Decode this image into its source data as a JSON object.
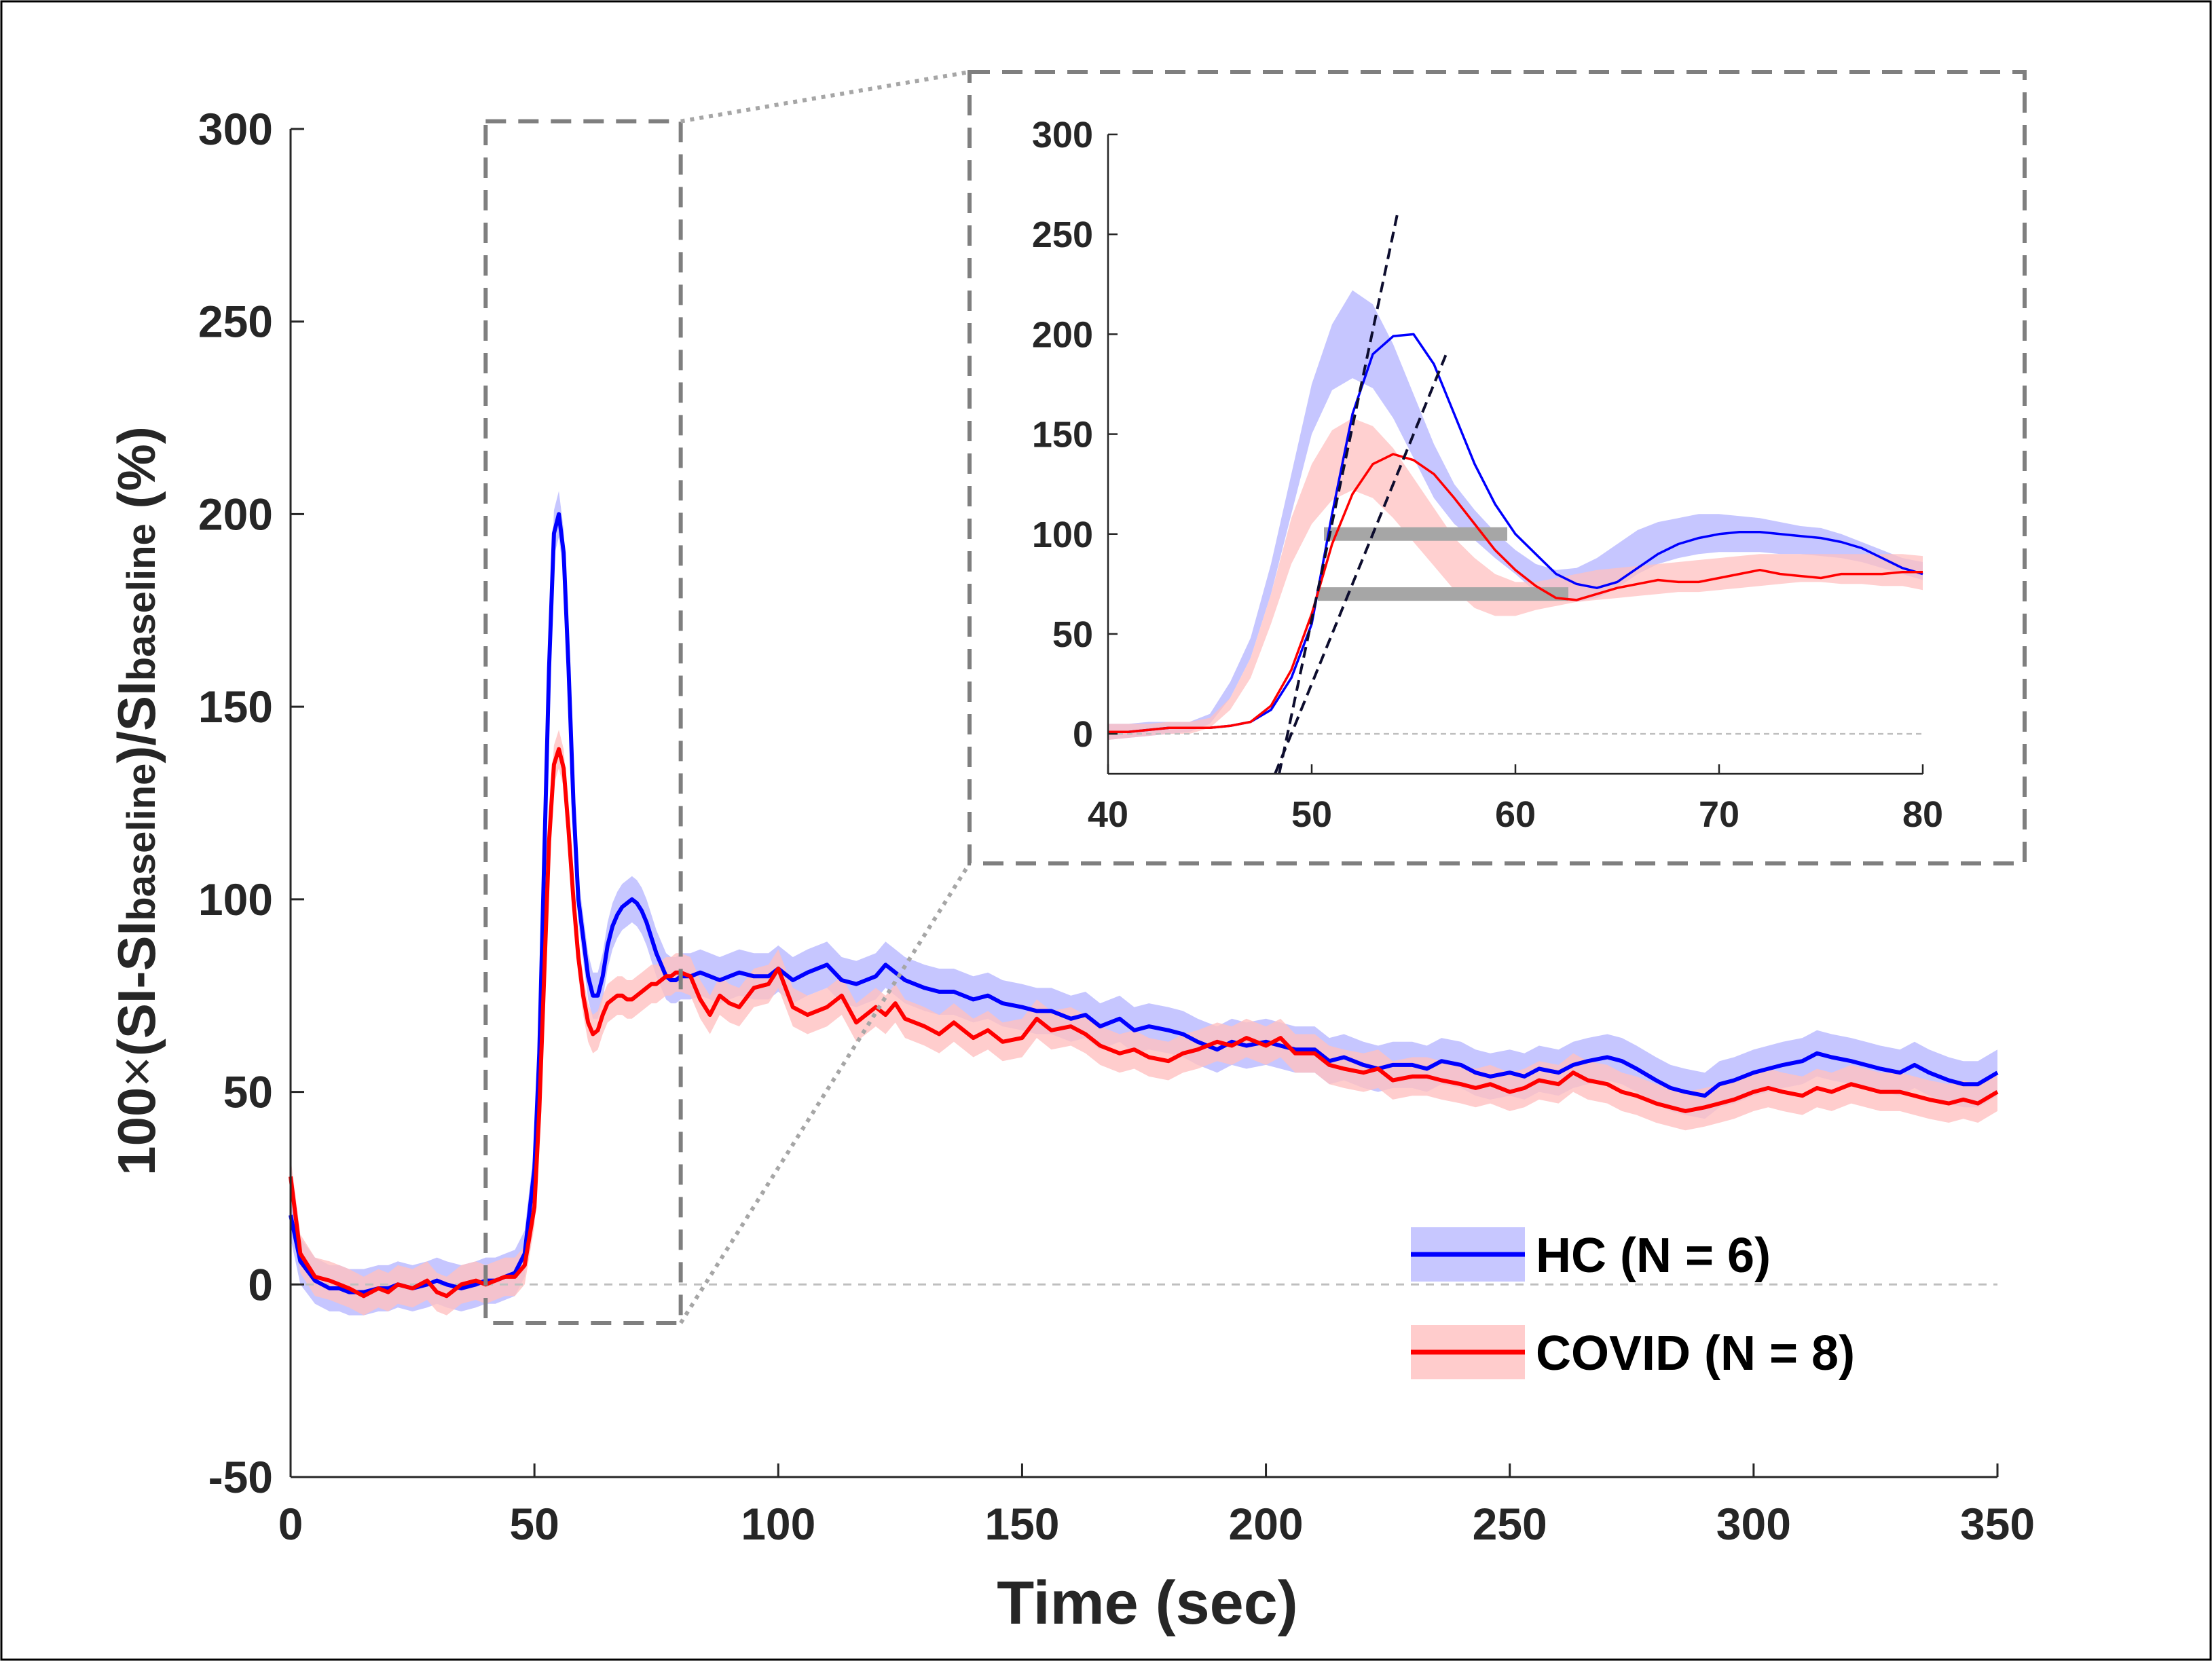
{
  "chart_data": [
    {
      "id": "main",
      "type": "line",
      "title": "",
      "xlabel": "Time (sec)",
      "ylabel_parts": [
        "100",
        "×",
        "(SI-SI",
        "baseline",
        ")/SI",
        "baseline",
        " (%)"
      ],
      "xlim": [
        0,
        350
      ],
      "ylim": [
        -50,
        300
      ],
      "xticks": [
        "0",
        "50",
        "100",
        "150",
        "200",
        "250",
        "300",
        "350"
      ],
      "xtick_values": [
        0,
        50,
        100,
        150,
        200,
        250,
        300,
        350
      ],
      "yticks": [
        "-50",
        "0",
        "50",
        "100",
        "150",
        "200",
        "250",
        "300"
      ],
      "ytick_values": [
        -50,
        0,
        50,
        100,
        150,
        200,
        250,
        300
      ],
      "zero_reference_line": true,
      "zoom_box": {
        "x": [
          40,
          80
        ],
        "y": [
          -10,
          302
        ]
      },
      "series": [
        {
          "name": "HC (N = 6)",
          "color": "#0000ff",
          "band_color": "#b3b3ff",
          "band_halfwidth": 6,
          "x": [
            0,
            2,
            5,
            8,
            10,
            12,
            15,
            18,
            20,
            22,
            25,
            28,
            30,
            32,
            35,
            38,
            40,
            42,
            44,
            46,
            48,
            50,
            51,
            52,
            53,
            54,
            55,
            56,
            57,
            58,
            59,
            60,
            61,
            62,
            63,
            64,
            65,
            66,
            67,
            68,
            69,
            70,
            71,
            72,
            73,
            74,
            75,
            76,
            77,
            78,
            79,
            80,
            82,
            84,
            86,
            88,
            90,
            92,
            95,
            98,
            100,
            103,
            106,
            110,
            113,
            116,
            120,
            122,
            124,
            126,
            130,
            133,
            136,
            140,
            143,
            146,
            150,
            153,
            156,
            160,
            163,
            166,
            170,
            173,
            176,
            180,
            183,
            186,
            190,
            193,
            196,
            200,
            203,
            206,
            210,
            213,
            216,
            220,
            223,
            226,
            230,
            233,
            236,
            240,
            243,
            246,
            250,
            253,
            256,
            260,
            263,
            266,
            270,
            273,
            276,
            280,
            283,
            286,
            290,
            293,
            296,
            300,
            303,
            306,
            310,
            313,
            316,
            320,
            323,
            326,
            330,
            333,
            336,
            340,
            343,
            346,
            350
          ],
          "y": [
            18,
            6,
            1,
            -1,
            -1,
            -2,
            -2,
            -1,
            -1,
            0,
            -1,
            0,
            1,
            0,
            -1,
            0,
            1,
            1,
            2,
            3,
            8,
            30,
            60,
            110,
            160,
            195,
            200,
            190,
            160,
            125,
            100,
            90,
            80,
            75,
            75,
            80,
            88,
            93,
            96,
            98,
            99,
            100,
            99,
            97,
            94,
            90,
            86,
            83,
            80,
            79,
            79,
            80,
            80,
            81,
            80,
            79,
            80,
            81,
            80,
            80,
            82,
            79,
            81,
            83,
            79,
            78,
            80,
            83,
            81,
            79,
            77,
            76,
            76,
            74,
            75,
            73,
            72,
            71,
            71,
            69,
            70,
            67,
            69,
            66,
            67,
            66,
            65,
            63,
            61,
            63,
            62,
            63,
            62,
            61,
            61,
            58,
            59,
            57,
            56,
            57,
            57,
            56,
            58,
            57,
            55,
            54,
            55,
            54,
            56,
            55,
            57,
            58,
            59,
            58,
            56,
            53,
            51,
            50,
            49,
            52,
            53,
            55,
            56,
            57,
            58,
            60,
            59,
            58,
            57,
            56,
            55,
            57,
            55,
            53,
            52,
            52,
            55
          ]
        },
        {
          "name": "COVID (N = 8)",
          "color": "#ff0000",
          "band_color": "#ffc0c0",
          "band_halfwidth": 5,
          "x": [
            0,
            2,
            5,
            8,
            10,
            12,
            15,
            18,
            20,
            22,
            25,
            28,
            30,
            32,
            35,
            38,
            40,
            42,
            44,
            46,
            48,
            50,
            51,
            52,
            53,
            54,
            55,
            56,
            57,
            58,
            59,
            60,
            61,
            62,
            63,
            64,
            65,
            66,
            67,
            68,
            69,
            70,
            71,
            72,
            73,
            74,
            75,
            76,
            77,
            78,
            79,
            80,
            82,
            84,
            86,
            88,
            90,
            92,
            95,
            98,
            100,
            103,
            106,
            110,
            113,
            116,
            120,
            122,
            124,
            126,
            130,
            133,
            136,
            140,
            143,
            146,
            150,
            153,
            156,
            160,
            163,
            166,
            170,
            173,
            176,
            180,
            183,
            186,
            190,
            193,
            196,
            200,
            203,
            206,
            210,
            213,
            216,
            220,
            223,
            226,
            230,
            233,
            236,
            240,
            243,
            246,
            250,
            253,
            256,
            260,
            263,
            266,
            270,
            273,
            276,
            280,
            283,
            286,
            290,
            293,
            296,
            300,
            303,
            306,
            310,
            313,
            316,
            320,
            323,
            326,
            330,
            333,
            336,
            340,
            343,
            346,
            350
          ],
          "y": [
            28,
            8,
            2,
            1,
            0,
            -1,
            -3,
            -1,
            -2,
            0,
            -1,
            1,
            -2,
            -3,
            0,
            1,
            0,
            1,
            2,
            2,
            5,
            20,
            45,
            80,
            115,
            135,
            139,
            134,
            118,
            100,
            85,
            75,
            68,
            65,
            66,
            70,
            73,
            74,
            75,
            75,
            74,
            74,
            75,
            76,
            77,
            78,
            78,
            79,
            80,
            80,
            81,
            81,
            80,
            74,
            70,
            75,
            73,
            72,
            77,
            78,
            82,
            72,
            70,
            72,
            75,
            68,
            72,
            70,
            73,
            69,
            67,
            65,
            68,
            64,
            66,
            63,
            64,
            69,
            66,
            67,
            65,
            62,
            60,
            61,
            59,
            58,
            60,
            61,
            63,
            62,
            64,
            62,
            64,
            60,
            60,
            57,
            56,
            55,
            56,
            53,
            54,
            54,
            53,
            52,
            51,
            52,
            50,
            51,
            53,
            52,
            55,
            53,
            52,
            50,
            49,
            47,
            46,
            45,
            46,
            47,
            48,
            50,
            51,
            50,
            49,
            51,
            50,
            52,
            51,
            50,
            50,
            49,
            48,
            47,
            48,
            47,
            50
          ]
        }
      ],
      "legend": {
        "position": "bottom-right",
        "entries": [
          "HC (N = 6)",
          "COVID (N = 8)"
        ]
      }
    },
    {
      "id": "inset",
      "type": "line",
      "title": "",
      "xlabel": "",
      "ylabel": "",
      "xlim": [
        40,
        80
      ],
      "ylim": [
        -20,
        300
      ],
      "xticks": [
        "40",
        "50",
        "60",
        "70",
        "80"
      ],
      "xtick_values": [
        40,
        50,
        60,
        70,
        80
      ],
      "yticks": [
        "0",
        "50",
        "100",
        "150",
        "200",
        "250",
        "300"
      ],
      "ytick_values": [
        0,
        50,
        100,
        150,
        200,
        250,
        300
      ],
      "series": [
        {
          "name": "HC",
          "color": "#0000ff",
          "band_color": "#b3b3ff",
          "band_lower": [
            -3,
            -2,
            -1,
            0,
            1,
            5,
            18,
            38,
            70,
            110,
            150,
            172,
            178,
            173,
            158,
            138,
            118,
            105,
            97,
            88,
            80,
            71,
            67,
            66,
            68,
            73,
            80,
            85,
            88,
            90,
            91,
            91,
            91,
            90,
            90,
            89,
            88,
            86,
            83,
            80,
            77
          ],
          "band_upper": [
            5,
            5,
            6,
            6,
            6,
            10,
            26,
            48,
            85,
            130,
            175,
            205,
            222,
            215,
            195,
            170,
            145,
            125,
            112,
            101,
            92,
            85,
            82,
            83,
            88,
            95,
            102,
            106,
            108,
            110,
            110,
            109,
            108,
            106,
            104,
            103,
            100,
            96,
            92,
            88,
            86
          ],
          "x": [
            40,
            41,
            42,
            43,
            44,
            45,
            46,
            47,
            48,
            49,
            50,
            51,
            52,
            53,
            54,
            55,
            56,
            57,
            58,
            59,
            60,
            61,
            62,
            63,
            64,
            65,
            66,
            67,
            68,
            69,
            70,
            71,
            72,
            73,
            74,
            75,
            76,
            77,
            78,
            79,
            80
          ],
          "y": [
            1,
            1,
            2,
            3,
            3,
            3,
            4,
            6,
            12,
            28,
            55,
            110,
            160,
            190,
            199,
            200,
            185,
            160,
            135,
            115,
            100,
            90,
            80,
            75,
            73,
            76,
            83,
            90,
            95,
            98,
            100,
            101,
            101,
            100,
            99,
            98,
            96,
            93,
            88,
            83,
            80
          ]
        },
        {
          "name": "COVID",
          "color": "#ff0000",
          "band_color": "#ffc0c0",
          "band_lower": [
            -3,
            -2,
            -1,
            0,
            0,
            3,
            12,
            28,
            55,
            85,
            105,
            117,
            122,
            118,
            108,
            96,
            84,
            72,
            63,
            59,
            59,
            62,
            64,
            66,
            67,
            68,
            69,
            70,
            71,
            71,
            72,
            73,
            74,
            75,
            76,
            76,
            75,
            75,
            74,
            74,
            72
          ],
          "band_upper": [
            5,
            5,
            5,
            6,
            6,
            8,
            18,
            38,
            70,
            108,
            135,
            152,
            158,
            154,
            143,
            128,
            113,
            98,
            88,
            80,
            76,
            76,
            78,
            80,
            82,
            83,
            84,
            85,
            86,
            87,
            88,
            89,
            90,
            90,
            90,
            90,
            90,
            90,
            90,
            90,
            89
          ],
          "x": [
            40,
            41,
            42,
            43,
            44,
            45,
            46,
            47,
            48,
            49,
            50,
            51,
            52,
            53,
            54,
            55,
            56,
            57,
            58,
            59,
            60,
            61,
            62,
            63,
            64,
            65,
            66,
            67,
            68,
            69,
            70,
            71,
            72,
            73,
            74,
            75,
            76,
            77,
            78,
            79,
            80
          ],
          "y": [
            1,
            1,
            2,
            3,
            3,
            3,
            4,
            6,
            14,
            32,
            60,
            95,
            120,
            135,
            140,
            137,
            130,
            118,
            105,
            92,
            82,
            74,
            68,
            67,
            70,
            73,
            75,
            77,
            76,
            76,
            78,
            80,
            82,
            80,
            79,
            78,
            80,
            80,
            80,
            81,
            81
          ]
        }
      ],
      "tangent_lines": [
        {
          "x": [
            48.4,
            54.2
          ],
          "y": [
            -20,
            260
          ]
        },
        {
          "x": [
            48.2,
            56.6
          ],
          "y": [
            -20,
            190
          ]
        }
      ],
      "half_height_bars": [
        {
          "x": [
            50.6,
            59.6
          ],
          "y": 100
        },
        {
          "x": [
            50.3,
            62.6
          ],
          "y": 70
        }
      ]
    }
  ]
}
